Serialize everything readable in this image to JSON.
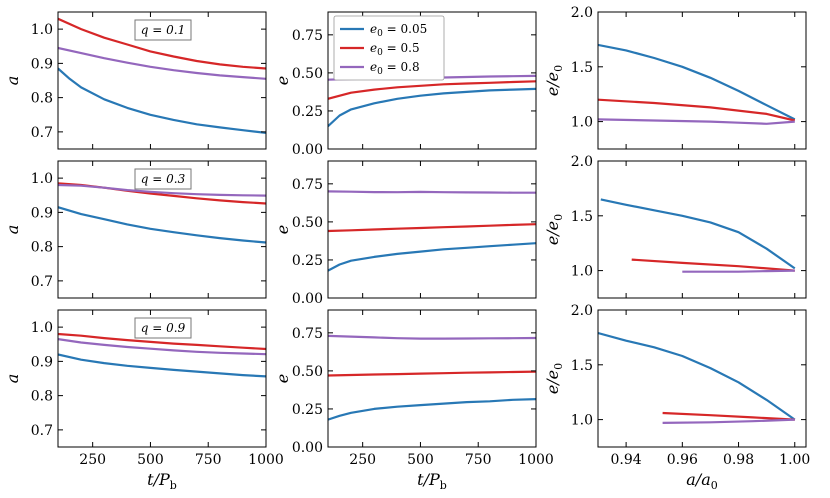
{
  "colors": {
    "e0_005": "#2878b5",
    "e0_05": "#d62728",
    "e0_08": "#9467bd"
  },
  "chart_data": [
    {
      "id": "a_q01",
      "row": 0,
      "col": 0,
      "type": "line",
      "title": "q = 0.1",
      "ylabel": "a",
      "xlabel": "",
      "xlim": [
        100,
        1000
      ],
      "ylim": [
        0.65,
        1.05
      ],
      "xticks": [
        250,
        500,
        750,
        1000
      ],
      "yticks": [
        0.7,
        0.8,
        0.9,
        1.0
      ],
      "xtick_labels_shown": false,
      "yticks_labels": [
        "0.7",
        "0.8",
        "0.9",
        "1.0"
      ],
      "series": [
        {
          "name": "e0 = 0.05",
          "color": "#2878b5",
          "x": [
            100,
            150,
            200,
            300,
            400,
            500,
            600,
            700,
            800,
            900,
            1000
          ],
          "y": [
            0.885,
            0.855,
            0.83,
            0.795,
            0.77,
            0.75,
            0.735,
            0.722,
            0.713,
            0.705,
            0.697
          ]
        },
        {
          "name": "e0 = 0.5",
          "color": "#d62728",
          "x": [
            100,
            200,
            300,
            400,
            500,
            600,
            700,
            800,
            900,
            1000
          ],
          "y": [
            1.03,
            1.0,
            0.975,
            0.955,
            0.935,
            0.92,
            0.907,
            0.897,
            0.89,
            0.885
          ]
        },
        {
          "name": "e0 = 0.8",
          "color": "#9467bd",
          "x": [
            100,
            200,
            300,
            400,
            500,
            600,
            700,
            800,
            900,
            1000
          ],
          "y": [
            0.945,
            0.93,
            0.915,
            0.902,
            0.89,
            0.88,
            0.872,
            0.865,
            0.86,
            0.855
          ]
        }
      ]
    },
    {
      "id": "e_q01",
      "row": 0,
      "col": 1,
      "type": "line",
      "ylabel": "e",
      "xlabel": "",
      "xlim": [
        100,
        1000
      ],
      "ylim": [
        0,
        0.9
      ],
      "xticks": [
        250,
        500,
        750,
        1000
      ],
      "yticks": [
        0,
        0.25,
        0.5,
        0.75
      ],
      "xtick_labels_shown": false,
      "yticks_labels": [
        "0.00",
        "0.25",
        "0.50",
        "0.75"
      ],
      "legend": {
        "placement": "top-left",
        "entries": [
          "e0 = 0.05",
          "e0 = 0.5",
          "e0 = 0.8"
        ]
      },
      "series": [
        {
          "name": "e0 = 0.05",
          "color": "#2878b5",
          "x": [
            100,
            150,
            200,
            300,
            400,
            500,
            600,
            700,
            800,
            900,
            1000
          ],
          "y": [
            0.15,
            0.22,
            0.26,
            0.3,
            0.33,
            0.35,
            0.365,
            0.375,
            0.385,
            0.39,
            0.395
          ]
        },
        {
          "name": "e0 = 0.5",
          "color": "#d62728",
          "x": [
            100,
            200,
            300,
            400,
            500,
            600,
            700,
            800,
            900,
            1000
          ],
          "y": [
            0.33,
            0.37,
            0.39,
            0.405,
            0.415,
            0.425,
            0.43,
            0.435,
            0.44,
            0.445
          ]
        },
        {
          "name": "e0 = 0.8",
          "color": "#9467bd",
          "x": [
            100,
            200,
            300,
            400,
            500,
            600,
            700,
            800,
            900,
            1000
          ],
          "y": [
            0.455,
            0.46,
            0.462,
            0.465,
            0.468,
            0.47,
            0.473,
            0.476,
            0.478,
            0.48
          ]
        }
      ]
    },
    {
      "id": "ee0_q01",
      "row": 0,
      "col": 2,
      "type": "line",
      "ylabel": "e/e0",
      "xlabel": "",
      "xlim": [
        0.93,
        1.004
      ],
      "ylim": [
        0.75,
        2.0
      ],
      "xticks": [
        0.94,
        0.96,
        0.98,
        1.0
      ],
      "yticks": [
        1.0,
        1.5,
        2.0
      ],
      "xtick_labels_shown": false,
      "yticks_labels": [
        "1.0",
        "1.5",
        "2.0"
      ],
      "series": [
        {
          "name": "e0 = 0.05",
          "color": "#2878b5",
          "x": [
            0.93,
            0.94,
            0.95,
            0.96,
            0.97,
            0.98,
            0.99,
            1.0
          ],
          "y": [
            1.7,
            1.65,
            1.58,
            1.5,
            1.4,
            1.28,
            1.15,
            1.02
          ]
        },
        {
          "name": "e0 = 0.5",
          "color": "#d62728",
          "x": [
            0.93,
            0.95,
            0.97,
            0.99,
            1.0
          ],
          "y": [
            1.2,
            1.17,
            1.13,
            1.07,
            1.01
          ]
        },
        {
          "name": "e0 = 0.8",
          "color": "#9467bd",
          "x": [
            0.93,
            0.95,
            0.97,
            0.98,
            0.99,
            1.0
          ],
          "y": [
            1.02,
            1.01,
            1.0,
            0.99,
            0.98,
            1.0
          ]
        }
      ]
    },
    {
      "id": "a_q03",
      "row": 1,
      "col": 0,
      "type": "line",
      "title": "q = 0.3",
      "ylabel": "a",
      "xlabel": "",
      "xlim": [
        100,
        1000
      ],
      "ylim": [
        0.65,
        1.05
      ],
      "xticks": [
        250,
        500,
        750,
        1000
      ],
      "yticks": [
        0.7,
        0.8,
        0.9,
        1.0
      ],
      "xtick_labels_shown": false,
      "yticks_labels": [
        "0.7",
        "0.8",
        "0.9",
        "1.0"
      ],
      "series": [
        {
          "name": "e0 = 0.05",
          "color": "#2878b5",
          "x": [
            100,
            200,
            300,
            400,
            500,
            600,
            700,
            800,
            900,
            1000
          ],
          "y": [
            0.915,
            0.895,
            0.88,
            0.865,
            0.852,
            0.842,
            0.833,
            0.825,
            0.818,
            0.812
          ]
        },
        {
          "name": "e0 = 0.5",
          "color": "#d62728",
          "x": [
            100,
            200,
            300,
            400,
            500,
            600,
            700,
            800,
            900,
            1000
          ],
          "y": [
            0.985,
            0.98,
            0.972,
            0.963,
            0.955,
            0.948,
            0.941,
            0.935,
            0.93,
            0.926
          ]
        },
        {
          "name": "e0 = 0.8",
          "color": "#9467bd",
          "x": [
            100,
            200,
            300,
            400,
            500,
            600,
            700,
            800,
            900,
            1000
          ],
          "y": [
            0.98,
            0.978,
            0.972,
            0.965,
            0.96,
            0.956,
            0.953,
            0.951,
            0.95,
            0.949
          ]
        }
      ]
    },
    {
      "id": "e_q03",
      "row": 1,
      "col": 1,
      "type": "line",
      "ylabel": "e",
      "xlabel": "",
      "xlim": [
        100,
        1000
      ],
      "ylim": [
        0,
        0.9
      ],
      "xticks": [
        250,
        500,
        750,
        1000
      ],
      "yticks": [
        0,
        0.25,
        0.5,
        0.75
      ],
      "xtick_labels_shown": false,
      "yticks_labels": [
        "0.00",
        "0.25",
        "0.50",
        "0.75"
      ],
      "series": [
        {
          "name": "e0 = 0.05",
          "color": "#2878b5",
          "x": [
            100,
            150,
            200,
            300,
            400,
            500,
            600,
            700,
            800,
            900,
            1000
          ],
          "y": [
            0.18,
            0.22,
            0.245,
            0.27,
            0.29,
            0.305,
            0.32,
            0.33,
            0.34,
            0.35,
            0.36
          ]
        },
        {
          "name": "e0 = 0.5",
          "color": "#d62728",
          "x": [
            100,
            200,
            300,
            400,
            500,
            600,
            700,
            800,
            900,
            1000
          ],
          "y": [
            0.44,
            0.445,
            0.45,
            0.455,
            0.46,
            0.465,
            0.47,
            0.475,
            0.48,
            0.485
          ]
        },
        {
          "name": "e0 = 0.8",
          "color": "#9467bd",
          "x": [
            100,
            200,
            300,
            400,
            500,
            600,
            700,
            800,
            900,
            1000
          ],
          "y": [
            0.7,
            0.698,
            0.696,
            0.695,
            0.697,
            0.695,
            0.694,
            0.693,
            0.692,
            0.692
          ]
        }
      ]
    },
    {
      "id": "ee0_q03",
      "row": 1,
      "col": 2,
      "type": "line",
      "ylabel": "e/e0",
      "xlabel": "",
      "xlim": [
        0.93,
        1.004
      ],
      "ylim": [
        0.75,
        2.0
      ],
      "xticks": [
        0.94,
        0.96,
        0.98,
        1.0
      ],
      "yticks": [
        1.0,
        1.5,
        2.0
      ],
      "xtick_labels_shown": false,
      "yticks_labels": [
        "1.0",
        "1.5",
        "2.0"
      ],
      "series": [
        {
          "name": "e0 = 0.05",
          "color": "#2878b5",
          "x": [
            0.931,
            0.94,
            0.95,
            0.96,
            0.97,
            0.98,
            0.99,
            1.0
          ],
          "y": [
            1.65,
            1.6,
            1.55,
            1.5,
            1.44,
            1.35,
            1.2,
            1.02
          ]
        },
        {
          "name": "e0 = 0.5",
          "color": "#d62728",
          "x": [
            0.942,
            0.96,
            0.98,
            1.0
          ],
          "y": [
            1.1,
            1.07,
            1.04,
            1.0
          ]
        },
        {
          "name": "e0 = 0.8",
          "color": "#9467bd",
          "x": [
            0.96,
            0.98,
            0.99,
            1.0
          ],
          "y": [
            0.99,
            0.99,
            0.995,
            1.0
          ]
        }
      ]
    },
    {
      "id": "a_q09",
      "row": 2,
      "col": 0,
      "type": "line",
      "title": "q = 0.9",
      "ylabel": "a",
      "xlabel": "t/Pb",
      "xlim": [
        100,
        1000
      ],
      "ylim": [
        0.65,
        1.05
      ],
      "xticks": [
        250,
        500,
        750,
        1000
      ],
      "yticks": [
        0.7,
        0.8,
        0.9,
        1.0
      ],
      "xtick_labels_shown": true,
      "xticks_labels": [
        "250",
        "500",
        "750",
        "1000"
      ],
      "yticks_labels": [
        "0.7",
        "0.8",
        "0.9",
        "1.0"
      ],
      "series": [
        {
          "name": "e0 = 0.05",
          "color": "#2878b5",
          "x": [
            100,
            200,
            300,
            400,
            500,
            600,
            700,
            800,
            900,
            1000
          ],
          "y": [
            0.92,
            0.905,
            0.895,
            0.887,
            0.881,
            0.875,
            0.87,
            0.865,
            0.86,
            0.856
          ]
        },
        {
          "name": "e0 = 0.5",
          "color": "#d62728",
          "x": [
            100,
            200,
            300,
            400,
            500,
            600,
            700,
            800,
            900,
            1000
          ],
          "y": [
            0.98,
            0.975,
            0.968,
            0.962,
            0.957,
            0.952,
            0.948,
            0.944,
            0.94,
            0.936
          ]
        },
        {
          "name": "e0 = 0.8",
          "color": "#9467bd",
          "x": [
            100,
            200,
            300,
            400,
            500,
            600,
            700,
            800,
            900,
            1000
          ],
          "y": [
            0.965,
            0.955,
            0.948,
            0.942,
            0.937,
            0.932,
            0.928,
            0.925,
            0.923,
            0.921
          ]
        }
      ]
    },
    {
      "id": "e_q09",
      "row": 2,
      "col": 1,
      "type": "line",
      "ylabel": "e",
      "xlabel": "t/Pb",
      "xlim": [
        100,
        1000
      ],
      "ylim": [
        0,
        0.9
      ],
      "xticks": [
        250,
        500,
        750,
        1000
      ],
      "yticks": [
        0,
        0.25,
        0.5,
        0.75
      ],
      "xtick_labels_shown": true,
      "xticks_labels": [
        "250",
        "500",
        "750",
        "1000"
      ],
      "yticks_labels": [
        "0.00",
        "0.25",
        "0.50",
        "0.75"
      ],
      "series": [
        {
          "name": "e0 = 0.05",
          "color": "#2878b5",
          "x": [
            100,
            150,
            200,
            300,
            400,
            500,
            600,
            700,
            800,
            900,
            1000
          ],
          "y": [
            0.18,
            0.205,
            0.225,
            0.25,
            0.265,
            0.275,
            0.285,
            0.295,
            0.3,
            0.31,
            0.315
          ]
        },
        {
          "name": "e0 = 0.5",
          "color": "#d62728",
          "x": [
            100,
            200,
            300,
            400,
            500,
            600,
            700,
            800,
            900,
            1000
          ],
          "y": [
            0.47,
            0.473,
            0.476,
            0.479,
            0.482,
            0.485,
            0.488,
            0.49,
            0.493,
            0.495
          ]
        },
        {
          "name": "e0 = 0.8",
          "color": "#9467bd",
          "x": [
            100,
            200,
            300,
            400,
            500,
            600,
            700,
            800,
            900,
            1000
          ],
          "y": [
            0.73,
            0.725,
            0.72,
            0.715,
            0.712,
            0.712,
            0.713,
            0.714,
            0.715,
            0.716
          ]
        }
      ]
    },
    {
      "id": "ee0_q09",
      "row": 2,
      "col": 2,
      "type": "line",
      "ylabel": "e/e0",
      "xlabel": "a/a0",
      "xlim": [
        0.93,
        1.004
      ],
      "ylim": [
        0.75,
        2.0
      ],
      "xticks": [
        0.94,
        0.96,
        0.98,
        1.0
      ],
      "yticks": [
        1.0,
        1.5,
        2.0
      ],
      "xtick_labels_shown": true,
      "xticks_labels": [
        "0.94",
        "0.96",
        "0.98",
        "1.00"
      ],
      "yticks_labels": [
        "1.0",
        "1.5",
        "2.0"
      ],
      "series": [
        {
          "name": "e0 = 0.05",
          "color": "#2878b5",
          "x": [
            0.93,
            0.94,
            0.95,
            0.96,
            0.97,
            0.98,
            0.99,
            1.0
          ],
          "y": [
            1.79,
            1.72,
            1.66,
            1.58,
            1.47,
            1.34,
            1.18,
            1.0
          ]
        },
        {
          "name": "e0 = 0.5",
          "color": "#d62728",
          "x": [
            0.953,
            0.97,
            0.985,
            1.0
          ],
          "y": [
            1.06,
            1.04,
            1.02,
            1.0
          ]
        },
        {
          "name": "e0 = 0.8",
          "color": "#9467bd",
          "x": [
            0.953,
            0.97,
            0.985,
            1.0
          ],
          "y": [
            0.97,
            0.975,
            0.985,
            1.0
          ]
        }
      ]
    }
  ]
}
